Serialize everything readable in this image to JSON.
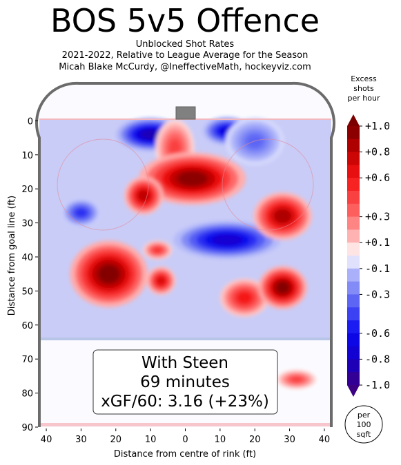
{
  "chart_data": {
    "type": "heatmap",
    "title": "BOS 5v5 Offence",
    "subtitle_lines": [
      "Unblocked Shot Rates",
      "2021-2022, Relative to League Average for the Season",
      "Micah Blake McCurdy, @IneffectiveMath, hockeyviz.com"
    ],
    "xlabel": "Distance from centre of rink (ft)",
    "ylabel": "Distance from goal line (ft)",
    "xlim": [
      -42,
      42
    ],
    "ylim": [
      90,
      -11
    ],
    "x_ticks": [
      {
        "v": -40,
        "label": "40"
      },
      {
        "v": -30,
        "label": "30"
      },
      {
        "v": -20,
        "label": "20"
      },
      {
        "v": -10,
        "label": "10"
      },
      {
        "v": 0,
        "label": "0"
      },
      {
        "v": 10,
        "label": "10"
      },
      {
        "v": 20,
        "label": "20"
      },
      {
        "v": 30,
        "label": "30"
      },
      {
        "v": 40,
        "label": "40"
      }
    ],
    "y_ticks": [
      {
        "v": 0,
        "label": "0"
      },
      {
        "v": 10,
        "label": "10"
      },
      {
        "v": 20,
        "label": "20"
      },
      {
        "v": 30,
        "label": "30"
      },
      {
        "v": 40,
        "label": "40"
      },
      {
        "v": 50,
        "label": "50"
      },
      {
        "v": 60,
        "label": "60"
      },
      {
        "v": 70,
        "label": "70"
      },
      {
        "v": 80,
        "label": "80"
      },
      {
        "v": 90,
        "label": "90"
      }
    ],
    "colorbar": {
      "title_lines": [
        "Excess",
        "shots",
        "per hour"
      ],
      "range": [
        -1.0,
        1.0
      ],
      "ticks": [
        {
          "v": 1.0,
          "label": "+1.0"
        },
        {
          "v": 0.8,
          "label": "+0.8"
        },
        {
          "v": 0.6,
          "label": "+0.6"
        },
        {
          "v": 0.3,
          "label": "+0.3"
        },
        {
          "v": 0.1,
          "label": "+0.1"
        },
        {
          "v": -0.1,
          "label": "-0.1"
        },
        {
          "v": -0.3,
          "label": "-0.3"
        },
        {
          "v": -0.6,
          "label": "-0.6"
        },
        {
          "v": -0.8,
          "label": "-0.8"
        },
        {
          "v": -1.0,
          "label": "-1.0"
        }
      ],
      "unit_lines": [
        "per",
        "100",
        "sqft"
      ]
    },
    "blobs": [
      {
        "x": -10,
        "y": 4,
        "rx": 7,
        "ry": 3.5,
        "v": -0.85
      },
      {
        "x": 12,
        "y": 3,
        "rx": 5,
        "ry": 3,
        "v": -0.7
      },
      {
        "x": 20,
        "y": 6,
        "rx": 6,
        "ry": 5,
        "v": -0.35
      },
      {
        "x": -30,
        "y": 27,
        "rx": 4,
        "ry": 3,
        "v": -0.5
      },
      {
        "x": 12,
        "y": 35,
        "rx": 11,
        "ry": 4,
        "v": -0.75
      },
      {
        "x": -3,
        "y": 8,
        "rx": 4,
        "ry": 6,
        "v": 0.45
      },
      {
        "x": 2,
        "y": 17,
        "rx": 11,
        "ry": 5.5,
        "v": 0.95
      },
      {
        "x": -12,
        "y": 22,
        "rx": 4,
        "ry": 4,
        "v": 0.8
      },
      {
        "x": 28,
        "y": 28,
        "rx": 6,
        "ry": 5,
        "v": 0.85
      },
      {
        "x": -8,
        "y": 38,
        "rx": 3,
        "ry": 2,
        "v": 0.5
      },
      {
        "x": -22,
        "y": 45,
        "rx": 8,
        "ry": 7,
        "v": 0.98
      },
      {
        "x": -7,
        "y": 47,
        "rx": 3,
        "ry": 3,
        "v": 0.7
      },
      {
        "x": 17,
        "y": 52,
        "rx": 5,
        "ry": 4,
        "v": 0.6
      },
      {
        "x": 28,
        "y": 49,
        "rx": 5,
        "ry": 4.5,
        "v": 0.98
      },
      {
        "x": 32,
        "y": 76,
        "rx": 4,
        "ry": 2,
        "v": 0.45
      }
    ],
    "annotation_lines": [
      "With Steen",
      "69 minutes",
      "xGF/60: 3.16 (+23%)"
    ]
  }
}
